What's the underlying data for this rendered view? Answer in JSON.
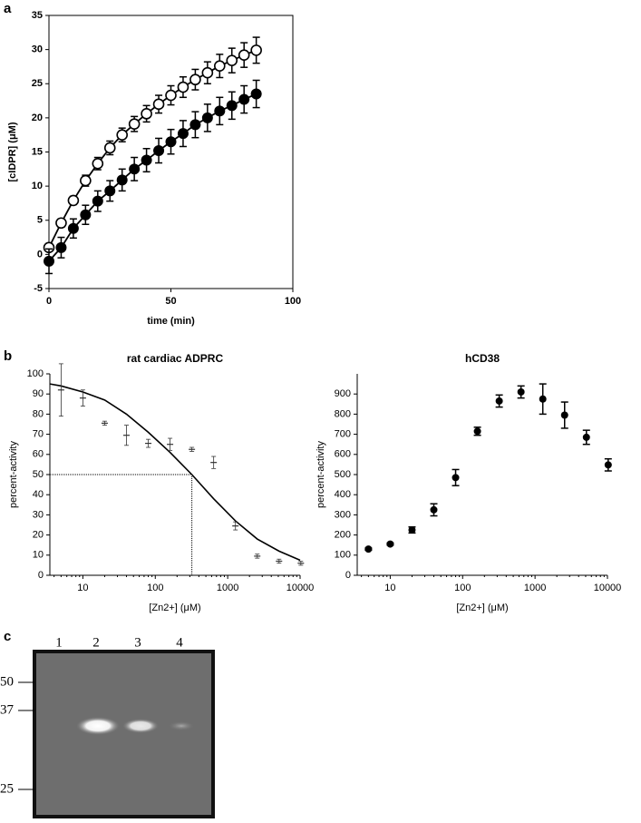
{
  "panel_labels": [
    "a",
    "b",
    "c"
  ],
  "chart_data": [
    {
      "type": "scatter",
      "xlabel": "time (min)",
      "ylabel": "[cIDPR] (μM)",
      "xlim": [
        0,
        100
      ],
      "xticks": [
        0,
        50,
        100
      ],
      "ylim": [
        -5,
        35
      ],
      "yticks": [
        -5,
        0,
        5,
        10,
        15,
        20,
        25,
        30,
        35
      ],
      "frame": true,
      "curve": true,
      "x": [
        0,
        5,
        10,
        15,
        20,
        25,
        30,
        35,
        40,
        45,
        50,
        55,
        60,
        65,
        70,
        75,
        80,
        85
      ],
      "series": [
        {
          "marker": "open",
          "color": "#000000",
          "values": [
            1,
            4.6,
            7.9,
            10.8,
            13.3,
            15.6,
            17.5,
            19.1,
            20.6,
            22,
            23.3,
            24.5,
            25.6,
            26.6,
            27.6,
            28.4,
            29.2,
            29.9
          ],
          "errors": [
            0.5,
            0.6,
            0.6,
            0.8,
            0.9,
            1,
            1,
            1.1,
            1.2,
            1.3,
            1.4,
            1.5,
            1.5,
            1.6,
            1.7,
            1.8,
            1.8,
            1.9
          ]
        },
        {
          "marker": "filled",
          "color": "#000000",
          "values": [
            -1,
            1,
            3.8,
            5.8,
            7.8,
            9.3,
            10.9,
            12.5,
            13.8,
            15.2,
            16.5,
            17.7,
            19,
            20,
            21,
            21.8,
            22.7,
            23.5
          ],
          "errors": [
            1.8,
            1.5,
            1.4,
            1.4,
            1.5,
            1.5,
            1.6,
            1.7,
            1.7,
            1.8,
            1.8,
            1.9,
            1.9,
            2,
            2,
            2,
            2,
            2
          ]
        }
      ]
    },
    {
      "type": "scatter",
      "title": "rat cardiac ADPRC",
      "xlabel": "[Zn2+] (μM)",
      "ylabel": "percent-activity",
      "xscale": "log",
      "xlim": [
        3.5,
        10000
      ],
      "xticks": [
        10,
        100,
        1000,
        10000
      ],
      "ylim": [
        0,
        100
      ],
      "yticks": [
        0,
        10,
        20,
        30,
        40,
        50,
        60,
        70,
        80,
        90,
        100
      ],
      "frame": false,
      "x": [
        5,
        10,
        20,
        40,
        80,
        160,
        320,
        640,
        1280,
        2560,
        5120,
        10240
      ],
      "series": [
        {
          "marker": "cross",
          "color": "#333333",
          "values": [
            92,
            88,
            75.5,
            69.5,
            65.5,
            65,
            62.5,
            56,
            24.5,
            9.5,
            7,
            6
          ],
          "errors": [
            13,
            4,
            1,
            5,
            2,
            3,
            1,
            3,
            2,
            1,
            1,
            1
          ]
        }
      ],
      "fit": {
        "x": [
          3.5,
          5,
          10,
          20,
          40,
          80,
          160,
          320,
          640,
          1280,
          2560,
          5120,
          10000
        ],
        "values": [
          95,
          94,
          91,
          87,
          80,
          71,
          61,
          50,
          38,
          27,
          18,
          12,
          7.5
        ]
      },
      "reference": {
        "x": 320,
        "y": 50
      }
    },
    {
      "type": "scatter",
      "title": "hCD38",
      "xlabel": "[Zn2+] (μM)",
      "ylabel": "percent-activity",
      "xscale": "log",
      "xlim": [
        3.5,
        10000
      ],
      "xticks": [
        10,
        100,
        1000,
        10000
      ],
      "ylim": [
        0,
        1000
      ],
      "yticks": [
        0,
        100,
        200,
        300,
        400,
        500,
        600,
        700,
        800,
        900
      ],
      "frame": false,
      "x": [
        5,
        10,
        20,
        40,
        80,
        160,
        320,
        640,
        1280,
        2560,
        5120,
        10240
      ],
      "series": [
        {
          "marker": "filled",
          "color": "#000000",
          "values": [
            130,
            155,
            225,
            325,
            485,
            715,
            865,
            910,
            875,
            795,
            685,
            548
          ],
          "errors": [
            5,
            5,
            15,
            30,
            40,
            20,
            30,
            30,
            75,
            65,
            35,
            30
          ]
        }
      ]
    }
  ],
  "gel": {
    "lanes": [
      "1",
      "2",
      "3",
      "4"
    ],
    "markers": [
      "50",
      "37",
      "25"
    ]
  }
}
